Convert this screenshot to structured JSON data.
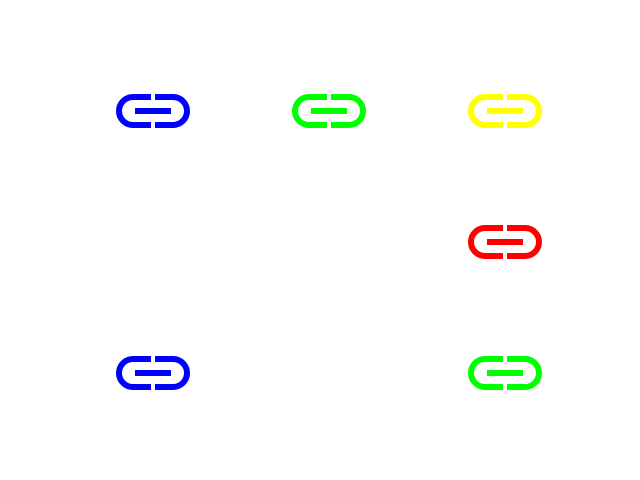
{
  "icons": [
    {
      "name": "link-icon",
      "color": "#0000ff"
    },
    {
      "name": "link-icon",
      "color": "#00ff00"
    },
    {
      "name": "link-icon",
      "color": "#ffff00"
    },
    {
      "name": "link-icon",
      "color": "#ff0000"
    },
    {
      "name": "link-icon",
      "color": "#0000ff"
    },
    {
      "name": "link-icon",
      "color": "#00ff00"
    }
  ]
}
